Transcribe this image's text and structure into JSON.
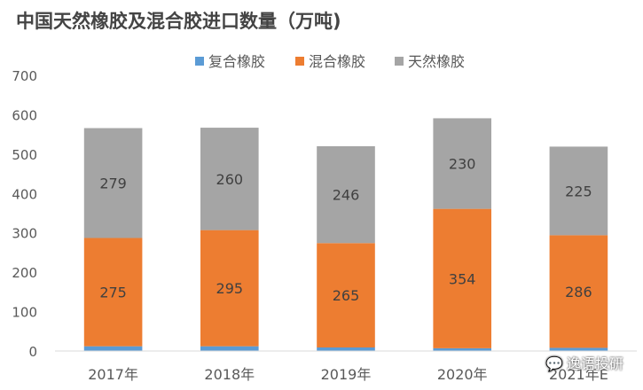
{
  "chart_data": {
    "type": "bar",
    "stacked": true,
    "title": "中国天然橡胶及混合胶进口数量（万吨)",
    "categories": [
      "2017年",
      "2018年",
      "2019年",
      "2020年",
      "2021年E"
    ],
    "series": [
      {
        "name": "复合橡胶",
        "color": "#5b9bd5",
        "values": [
          12,
          12,
          9,
          7,
          8
        ]
      },
      {
        "name": "混合橡胶",
        "color": "#ed7d31",
        "values": [
          275,
          295,
          265,
          354,
          286
        ]
      },
      {
        "name": "天然橡胶",
        "color": "#a5a5a5",
        "values": [
          279,
          260,
          246,
          230,
          225
        ]
      }
    ],
    "data_labels": {
      "混合橡胶": [
        "275",
        "295",
        "265",
        "354",
        "286"
      ],
      "天然橡胶": [
        "279",
        "260",
        "246",
        "230",
        "225"
      ]
    },
    "yticks": [
      0,
      100,
      200,
      300,
      400,
      500,
      600,
      700
    ],
    "ylim": [
      0,
      700
    ],
    "grid": false,
    "legend_position": "top"
  },
  "watermark": {
    "text": "逸语投研",
    "icon": "wechat-icon"
  }
}
